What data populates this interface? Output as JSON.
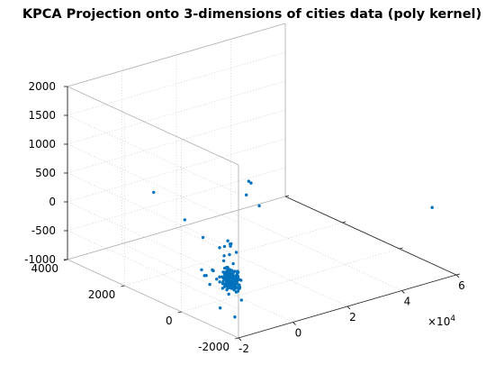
{
  "chart_data": {
    "type": "scatter",
    "title": "KPCA Projection onto 3-dimensions of cities data (poly kernel)",
    "xlabel": "",
    "ylabel": "",
    "zlabel": "",
    "x_exponent_label": "×10^4",
    "x_exponent_base": "×10",
    "x_exponent_power": "4",
    "xlim": [
      -20000,
      60000
    ],
    "ylim": [
      -2000,
      4000
    ],
    "zlim": [
      -1000,
      2000
    ],
    "xticks": [
      -20000,
      0,
      20000,
      40000,
      60000
    ],
    "xtick_labels": [
      "-2",
      "0",
      "2",
      "4",
      "6"
    ],
    "yticks": [
      -2000,
      0,
      2000,
      4000
    ],
    "ytick_labels": [
      "-2000",
      "0",
      "2000",
      "4000"
    ],
    "zticks": [
      -1000,
      -500,
      0,
      500,
      1000,
      1500,
      2000
    ],
    "ztick_labels": [
      "-1000",
      "-500",
      "0",
      "500",
      "1000",
      "1500",
      "2000"
    ],
    "grid": true,
    "marker_color": "#0072BD",
    "points": [
      [
        -3000,
        2600,
        250
      ],
      [
        -1000,
        1700,
        -50
      ],
      [
        1500,
        1300,
        -300
      ],
      [
        2600,
        -200,
        1000
      ],
      [
        4500,
        -100,
        920
      ],
      [
        2800,
        -550,
        650
      ],
      [
        3800,
        0,
        700
      ],
      [
        -1200,
        680,
        -700
      ],
      [
        -1050,
        730,
        -700
      ],
      [
        -1700,
        880,
        -820
      ],
      [
        -1100,
        1100,
        -780
      ],
      [
        -550,
        520,
        -780
      ],
      [
        -700,
        380,
        -820
      ],
      [
        300,
        180,
        -850
      ],
      [
        900,
        80,
        -820
      ],
      [
        -280,
        650,
        -850
      ],
      [
        -600,
        400,
        -870
      ],
      [
        -1300,
        980,
        -850
      ],
      [
        0,
        300,
        -900
      ],
      [
        400,
        500,
        -900
      ],
      [
        150,
        250,
        -760
      ],
      [
        -300,
        150,
        -730
      ],
      [
        500,
        350,
        -600
      ],
      [
        700,
        480,
        -420
      ],
      [
        800,
        650,
        -320
      ],
      [
        600,
        250,
        -200
      ],
      [
        1000,
        300,
        -180
      ],
      [
        1200,
        400,
        -150
      ],
      [
        500,
        450,
        -250
      ],
      [
        1100,
        200,
        -500
      ],
      [
        1300,
        350,
        -380
      ],
      [
        1700,
        150,
        -300
      ],
      [
        1800,
        600,
        -550
      ],
      [
        1900,
        350,
        -200
      ],
      [
        800,
        380,
        -720
      ],
      [
        1600,
        300,
        -700
      ],
      [
        1400,
        500,
        -780
      ],
      [
        -200,
        900,
        -1000
      ],
      [
        1200,
        350,
        -950
      ],
      [
        2600,
        500,
        -780
      ],
      [
        1900,
        50,
        -880
      ],
      [
        3000,
        200,
        -950
      ],
      [
        2800,
        450,
        -1000
      ],
      [
        500,
        600,
        -1350
      ],
      [
        2200,
        250,
        -1450
      ],
      [
        900,
        150,
        -940
      ],
      [
        1400,
        600,
        -1020
      ],
      [
        700,
        320,
        -1050
      ],
      [
        1500,
        -50,
        -1080
      ],
      [
        1800,
        500,
        -880
      ],
      [
        48000,
        -2300,
        400
      ]
    ],
    "cluster": {
      "center": [
        1500,
        300,
        -800
      ],
      "spread": [
        700,
        280,
        160
      ],
      "count": 150
    }
  }
}
